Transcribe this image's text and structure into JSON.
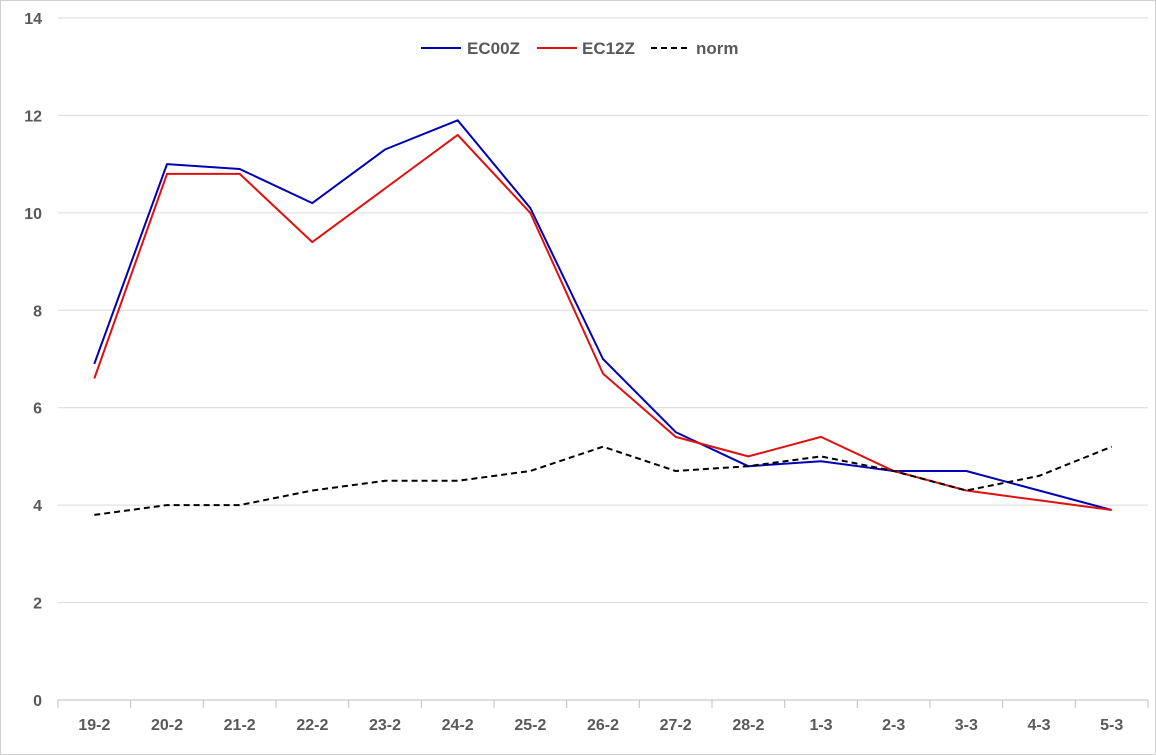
{
  "chart_data": {
    "type": "line",
    "categories": [
      "19-2",
      "20-2",
      "21-2",
      "22-2",
      "23-2",
      "24-2",
      "25-2",
      "26-2",
      "27-2",
      "28-2",
      "1-3",
      "2-3",
      "3-3",
      "4-3",
      "5-3"
    ],
    "ylim": [
      0,
      14
    ],
    "yticks": [
      0,
      2,
      4,
      6,
      8,
      10,
      12,
      14
    ],
    "grid": true,
    "legend_position": "top-center",
    "series": [
      {
        "name": "EC00Z",
        "color": "#0000b4",
        "dash": "solid",
        "values": [
          6.9,
          11.0,
          10.9,
          10.2,
          11.3,
          11.9,
          10.1,
          7.0,
          5.5,
          4.8,
          4.9,
          4.7,
          4.7,
          4.3,
          3.9
        ]
      },
      {
        "name": "EC12Z",
        "color": "#e01010",
        "dash": "solid",
        "values": [
          6.6,
          10.8,
          10.8,
          9.4,
          10.5,
          11.6,
          10.0,
          6.7,
          5.4,
          5.0,
          5.4,
          4.7,
          4.3,
          4.1,
          3.9
        ]
      },
      {
        "name": "norm",
        "color": "#000000",
        "dash": "dashed",
        "values": [
          3.8,
          4.0,
          4.0,
          4.3,
          4.5,
          4.5,
          4.7,
          5.2,
          4.7,
          4.8,
          5.0,
          4.7,
          4.3,
          4.6,
          5.2
        ]
      }
    ]
  }
}
